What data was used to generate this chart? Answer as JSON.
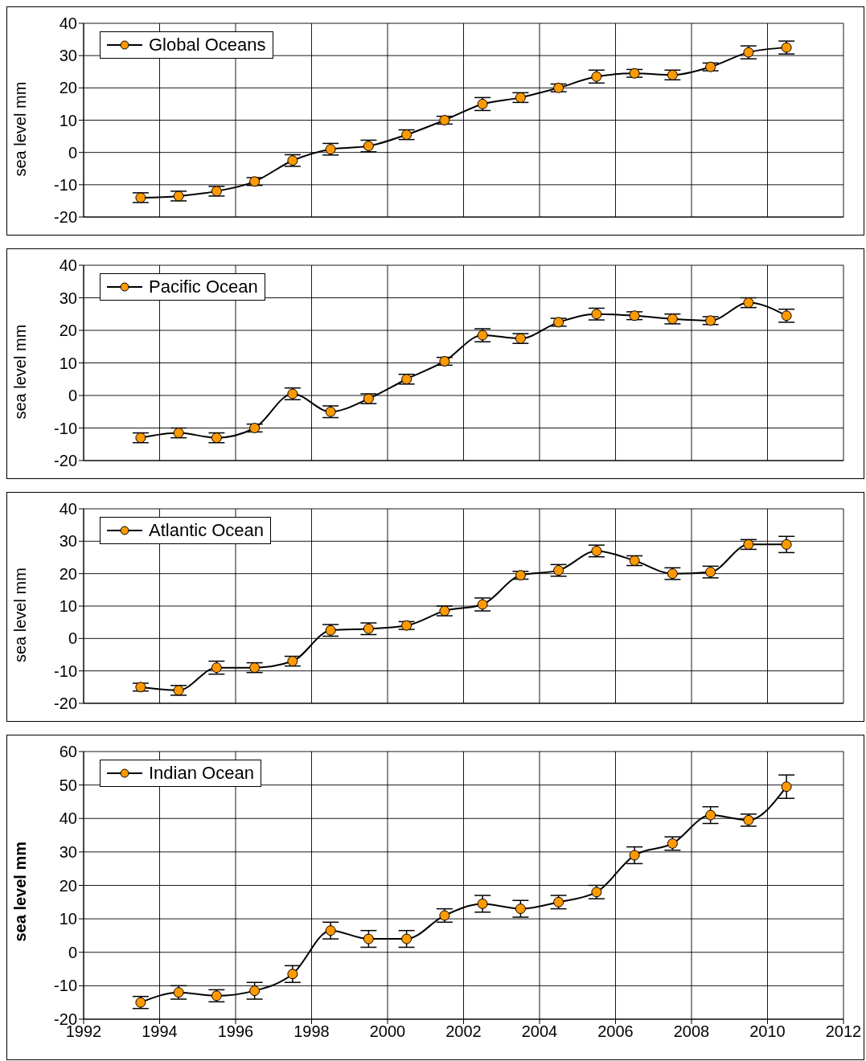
{
  "chart_data": [
    {
      "type": "line",
      "ylabel": "sea level mm",
      "x": [
        1993.5,
        1994.5,
        1995.5,
        1996.5,
        1997.5,
        1998.5,
        1999.5,
        2000.5,
        2001.5,
        2002.5,
        2003.5,
        2004.5,
        2005.5,
        2006.5,
        2007.5,
        2008.5,
        2009.5,
        2010.5
      ],
      "xlim": [
        1992,
        2012
      ],
      "xticks": [
        1992,
        1994,
        1996,
        1998,
        2000,
        2002,
        2004,
        2006,
        2008,
        2010,
        2012
      ],
      "ylim": [
        -20,
        40
      ],
      "yticks": [
        -20,
        -10,
        0,
        10,
        20,
        30,
        40
      ],
      "tick_labels": "y",
      "grid": true,
      "legend": "top left",
      "marker": "circle",
      "series": [
        {
          "name": "Global Oceans",
          "color": "#ff9900",
          "values": [
            -14,
            -13.5,
            -12,
            -9,
            -2.5,
            1,
            2,
            5.5,
            10,
            15,
            17,
            20,
            23.5,
            24.5,
            24,
            26.5,
            31,
            32.5
          ],
          "errors": [
            1.5,
            1.5,
            1.5,
            1.2,
            1.8,
            1.8,
            1.8,
            1.5,
            1.2,
            2,
            1.5,
            1.2,
            2,
            1.2,
            1.5,
            1.2,
            2,
            2
          ]
        }
      ]
    },
    {
      "type": "line",
      "ylabel": "sea level mm",
      "x": [
        1993.5,
        1994.5,
        1995.5,
        1996.5,
        1997.5,
        1998.5,
        1999.5,
        2000.5,
        2001.5,
        2002.5,
        2003.5,
        2004.5,
        2005.5,
        2006.5,
        2007.5,
        2008.5,
        2009.5,
        2010.5
      ],
      "xlim": [
        1992,
        2012
      ],
      "xticks": [
        1992,
        1994,
        1996,
        1998,
        2000,
        2002,
        2004,
        2006,
        2008,
        2010,
        2012
      ],
      "ylim": [
        -20,
        40
      ],
      "yticks": [
        -20,
        -10,
        0,
        10,
        20,
        30,
        40
      ],
      "tick_labels": "y",
      "grid": true,
      "legend": "top left",
      "marker": "circle",
      "series": [
        {
          "name": "Pacific Ocean",
          "color": "#ff9900",
          "values": [
            -13,
            -11.5,
            -13,
            -10,
            0.5,
            -5,
            -1,
            5,
            10.5,
            18.5,
            17.5,
            22.5,
            25,
            24.5,
            23.5,
            23,
            28.5,
            24.5
          ],
          "errors": [
            1.5,
            1.5,
            1.5,
            1.2,
            1.8,
            1.8,
            1.5,
            1.5,
            1.2,
            2,
            1.5,
            1.2,
            1.8,
            1.2,
            1.5,
            1.2,
            1.5,
            2
          ]
        }
      ]
    },
    {
      "type": "line",
      "ylabel": "sea level mm",
      "x": [
        1993.5,
        1994.5,
        1995.5,
        1996.5,
        1997.5,
        1998.5,
        1999.5,
        2000.5,
        2001.5,
        2002.5,
        2003.5,
        2004.5,
        2005.5,
        2006.5,
        2007.5,
        2008.5,
        2009.5,
        2010.5
      ],
      "xlim": [
        1992,
        2012
      ],
      "xticks": [
        1992,
        1994,
        1996,
        1998,
        2000,
        2002,
        2004,
        2006,
        2008,
        2010,
        2012
      ],
      "ylim": [
        -20,
        40
      ],
      "yticks": [
        -20,
        -10,
        0,
        10,
        20,
        30,
        40
      ],
      "tick_labels": "y",
      "grid": true,
      "legend": "top left",
      "marker": "circle",
      "series": [
        {
          "name": "Atlantic Ocean",
          "color": "#ff9900",
          "values": [
            -15,
            -16,
            -9,
            -9,
            -7,
            2.5,
            3,
            4,
            8.5,
            10.5,
            19.5,
            21,
            27,
            24,
            20,
            20.5,
            29,
            29
          ],
          "errors": [
            1.2,
            1.5,
            2,
            1.5,
            1.5,
            1.8,
            1.8,
            1.2,
            1.5,
            2,
            1.2,
            1.8,
            1.8,
            1.5,
            1.8,
            1.8,
            1.5,
            2.5
          ]
        }
      ]
    },
    {
      "type": "line",
      "ylabel": "sea level mm",
      "x": [
        1993.5,
        1994.5,
        1995.5,
        1996.5,
        1997.5,
        1998.5,
        1999.5,
        2000.5,
        2001.5,
        2002.5,
        2003.5,
        2004.5,
        2005.5,
        2006.5,
        2007.5,
        2008.5,
        2009.5,
        2010.5
      ],
      "xlim": [
        1992,
        2012
      ],
      "xticks": [
        1992,
        1994,
        1996,
        1998,
        2000,
        2002,
        2004,
        2006,
        2008,
        2010,
        2012
      ],
      "ylim": [
        -20,
        60
      ],
      "yticks": [
        -20,
        -10,
        0,
        10,
        20,
        30,
        40,
        50,
        60
      ],
      "grid": true,
      "legend": "top left",
      "marker": "circle",
      "series": [
        {
          "name": "Indian Ocean",
          "color": "#ff9900",
          "values": [
            -15,
            -12,
            -13,
            -11.5,
            -6.5,
            6.5,
            4,
            4,
            11,
            14.5,
            13,
            15,
            18,
            29,
            32.5,
            41,
            39.5,
            49.5
          ],
          "errors": [
            1.8,
            2,
            1.8,
            2.5,
            2.5,
            2.5,
            2.5,
            2.5,
            2,
            2.5,
            2.5,
            2,
            2,
            2.5,
            2,
            2.5,
            1.8,
            3.5
          ]
        }
      ]
    }
  ]
}
